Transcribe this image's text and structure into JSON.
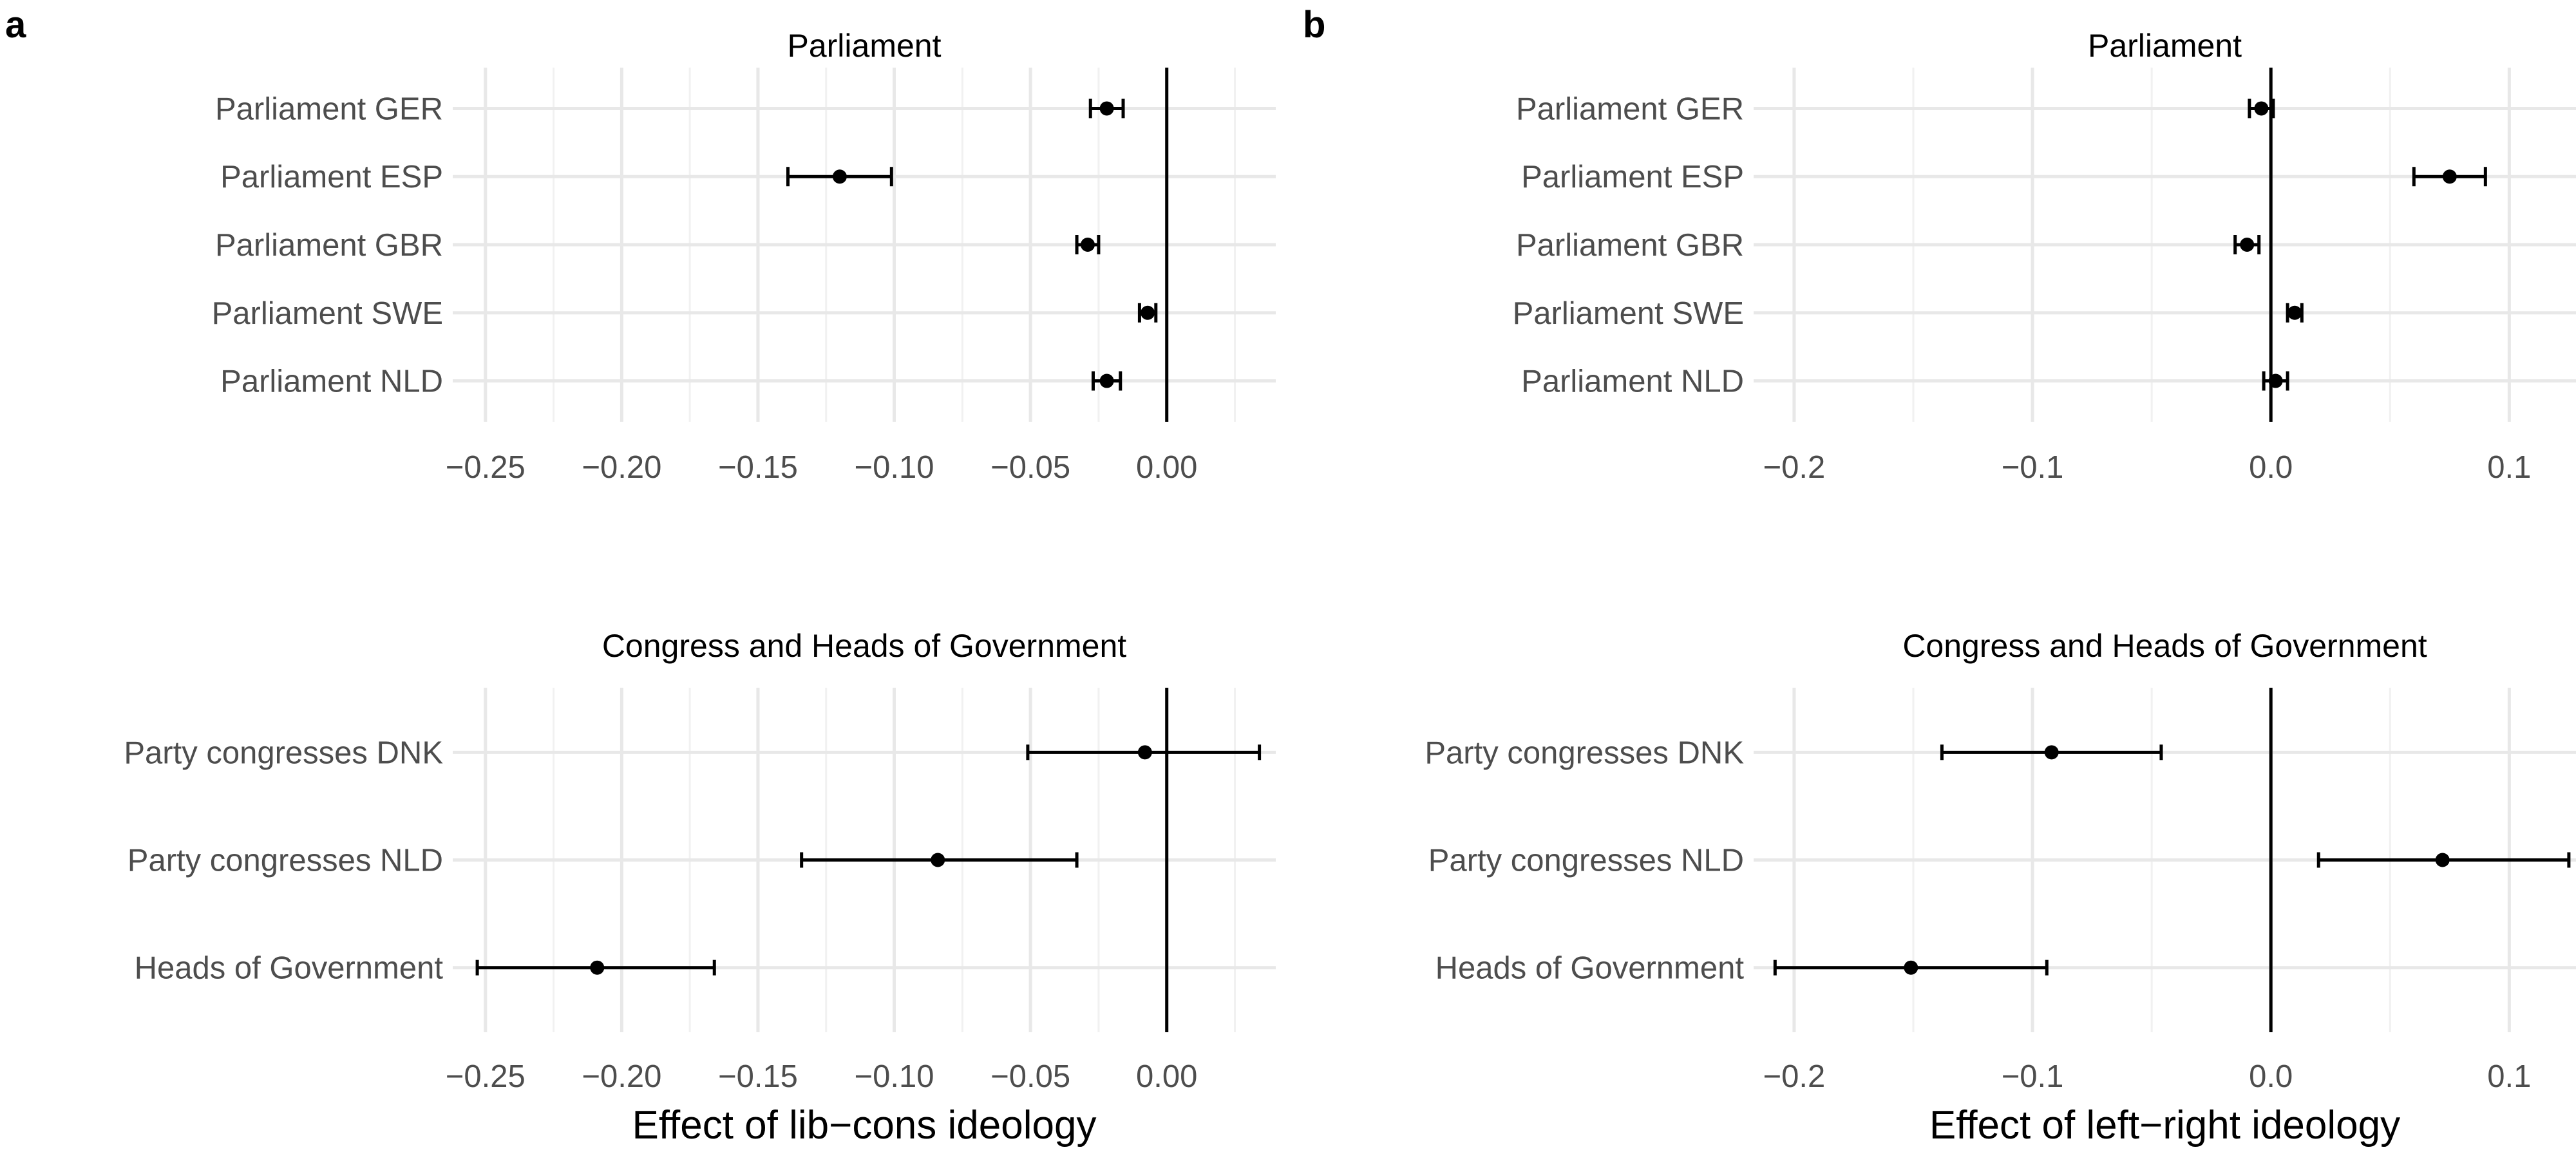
{
  "panel_letters": [
    "a",
    "b"
  ],
  "chart_data": [
    {
      "type": "scatter",
      "panel": "a",
      "subplot": "top",
      "title": "Parliament",
      "xlabel": "",
      "xlim": [
        -0.262,
        0.04
      ],
      "xticks": [
        -0.25,
        -0.2,
        -0.15,
        -0.1,
        -0.05,
        0.0
      ],
      "xtick_labels": [
        "−0.25",
        "−0.20",
        "−0.15",
        "−0.10",
        "−0.05",
        "0.00"
      ],
      "vline": 0,
      "categories": [
        "Parliament GER",
        "Parliament ESP",
        "Parliament GBR",
        "Parliament SWE",
        "Parliament NLD"
      ],
      "estimate": [
        -0.022,
        -0.12,
        -0.029,
        -0.007,
        -0.022
      ],
      "lower": [
        -0.028,
        -0.139,
        -0.033,
        -0.01,
        -0.027
      ],
      "upper": [
        -0.016,
        -0.101,
        -0.025,
        -0.004,
        -0.017
      ]
    },
    {
      "type": "scatter",
      "panel": "a",
      "subplot": "bottom",
      "title": "Congress and Heads of Government",
      "xlabel": "Effect of lib−cons ideology",
      "xlim": [
        -0.262,
        0.04
      ],
      "xticks": [
        -0.25,
        -0.2,
        -0.15,
        -0.1,
        -0.05,
        0.0
      ],
      "xtick_labels": [
        "−0.25",
        "−0.20",
        "−0.15",
        "−0.10",
        "−0.05",
        "0.00"
      ],
      "vline": 0,
      "categories": [
        "Party congresses DNK",
        "Party congresses NLD",
        "Heads of Government"
      ],
      "estimate": [
        -0.008,
        -0.084,
        -0.209
      ],
      "lower": [
        -0.051,
        -0.134,
        -0.253
      ],
      "upper": [
        0.034,
        -0.033,
        -0.166
      ]
    },
    {
      "type": "scatter",
      "panel": "b",
      "subplot": "top",
      "title": "Parliament",
      "xlabel": "",
      "xlim": [
        -0.217,
        0.128
      ],
      "xticks": [
        -0.2,
        -0.1,
        0.0,
        0.1
      ],
      "xtick_labels": [
        "−0.2",
        "−0.1",
        "0.0",
        "0.1"
      ],
      "vline": 0,
      "categories": [
        "Parliament GER",
        "Parliament ESP",
        "Parliament GBR",
        "Parliament SWE",
        "Parliament NLD"
      ],
      "estimate": [
        -0.004,
        0.075,
        -0.01,
        0.01,
        0.002
      ],
      "lower": [
        -0.009,
        0.06,
        -0.015,
        0.007,
        -0.003
      ],
      "upper": [
        0.001,
        0.09,
        -0.005,
        0.013,
        0.007
      ]
    },
    {
      "type": "scatter",
      "panel": "b",
      "subplot": "bottom",
      "title": "Congress and Heads of Government",
      "xlabel": "Effect of left−right ideology",
      "xlim": [
        -0.217,
        0.128
      ],
      "xticks": [
        -0.2,
        -0.1,
        0.0,
        0.1
      ],
      "xtick_labels": [
        "−0.2",
        "−0.1",
        "0.0",
        "0.1"
      ],
      "vline": 0,
      "categories": [
        "Party congresses DNK",
        "Party congresses NLD",
        "Heads of Government"
      ],
      "estimate": [
        -0.092,
        0.072,
        -0.151
      ],
      "lower": [
        -0.138,
        0.02,
        -0.208
      ],
      "upper": [
        -0.046,
        0.125,
        -0.094
      ]
    }
  ]
}
